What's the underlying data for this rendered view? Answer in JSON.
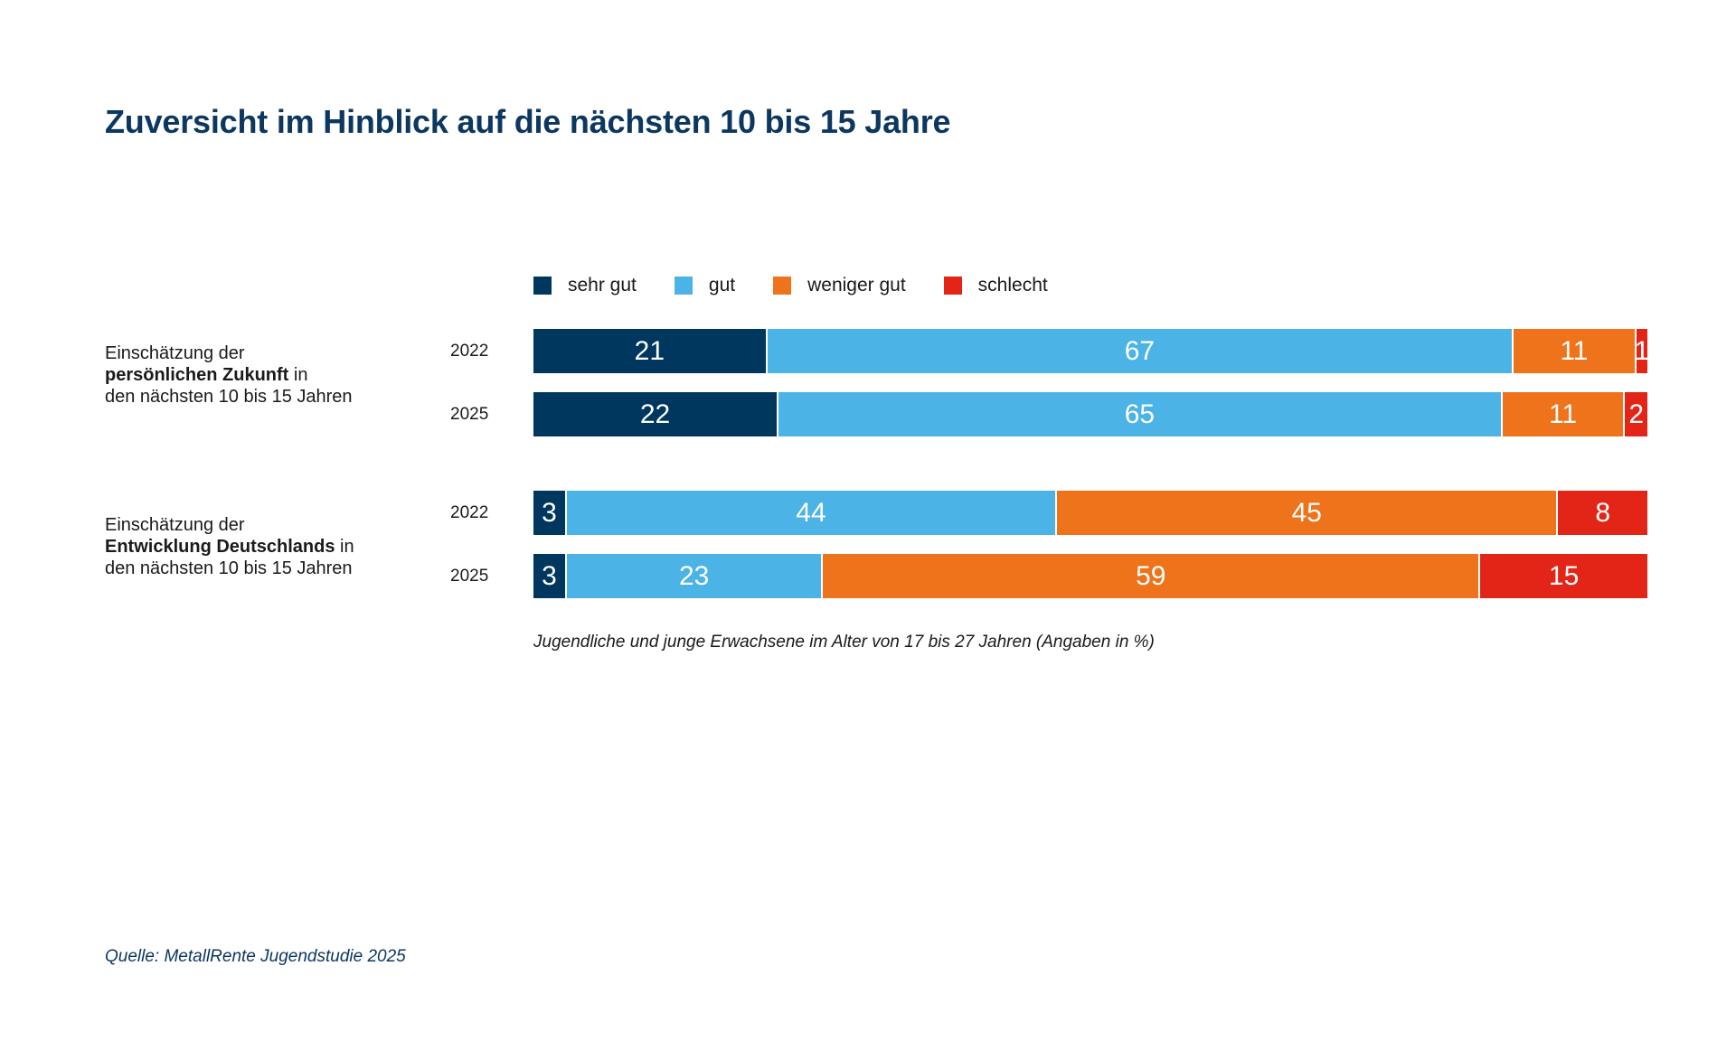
{
  "title": "Zuversicht im Hinblick auf die nächsten 10 bis 15 Jahre",
  "chart_data": {
    "type": "bar",
    "orientation": "horizontal",
    "stacked": true,
    "unit": "%",
    "legend": [
      {
        "name": "sehr gut",
        "color": "#00375f"
      },
      {
        "name": "gut",
        "color": "#4cb3e6"
      },
      {
        "name": "weniger gut",
        "color": "#ee731b"
      },
      {
        "name": "schlecht",
        "color": "#e32518"
      }
    ],
    "groups": [
      {
        "label_line1": "Einschätzung der",
        "label_bold": "persönlichen Zukunft",
        "label_after_bold": " in",
        "label_line3": "den nächsten 10 bis 15 Jahren",
        "rows": [
          {
            "year": "2022",
            "values": [
              21,
              67,
              11,
              1
            ]
          },
          {
            "year": "2025",
            "values": [
              22,
              65,
              11,
              2
            ]
          }
        ]
      },
      {
        "label_line1": "Einschätzung der",
        "label_bold": "Entwicklung Deutschlands",
        "label_after_bold": " in",
        "label_line3": "den nächsten 10 bis 15 Jahren",
        "rows": [
          {
            "year": "2022",
            "values": [
              3,
              44,
              45,
              8
            ]
          },
          {
            "year": "2025",
            "values": [
              3,
              23,
              59,
              15
            ]
          }
        ]
      }
    ],
    "note": "Jugendliche und junge Erwachsene im Alter von 17 bis 27 Jahren (Angaben in %)"
  },
  "source": "Quelle: MetallRente Jugendstudie 2025"
}
